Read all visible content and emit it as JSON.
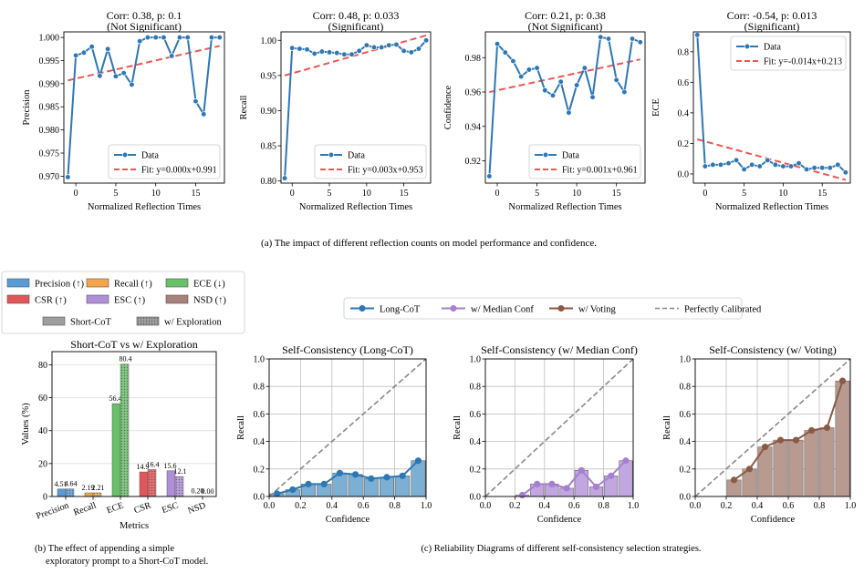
{
  "chart_data": {
    "top_panels": [
      {
        "type": "line",
        "title_line1": "Corr: 0.38, p: 0.1",
        "title_line2": "(Not Significant)",
        "xlabel": "Normalized Reflection Times",
        "ylabel": "Precision",
        "xlim": [
          -1.5,
          18.6
        ],
        "ylim": [
          0.9685,
          1.0012
        ],
        "xticks": [
          0,
          5,
          10,
          15
        ],
        "yticks": [
          0.97,
          0.975,
          0.98,
          0.985,
          0.99,
          0.995,
          1.0
        ],
        "ytick_labels": [
          "0.970",
          "0.975",
          "0.980",
          "0.985",
          "0.990",
          "0.995",
          "1.000"
        ],
        "x": [
          -1,
          0,
          1,
          2,
          3,
          4,
          5,
          6,
          7,
          8,
          9,
          10,
          11,
          12,
          13,
          14,
          15,
          16,
          17,
          18
        ],
        "y": [
          0.9698,
          0.9961,
          0.9967,
          0.998,
          0.9917,
          0.9975,
          0.9916,
          0.9923,
          0.9898,
          0.9992,
          1.0,
          1.0,
          1.0,
          0.996,
          1.0,
          1.0,
          0.9862,
          0.9834,
          1.0,
          1.0
        ],
        "fit": {
          "slope": 0.000392,
          "intercept": 0.9911
        },
        "legend": {
          "data": "Data",
          "fit": "Fit: y=0.000x+0.991",
          "position": "lower-right"
        }
      },
      {
        "type": "line",
        "title_line1": "Corr: 0.48, p: 0.033",
        "title_line2": "(Significant)",
        "xlabel": "Normalized Reflection Times",
        "ylabel": "Recall",
        "xlim": [
          -1.5,
          18.6
        ],
        "ylim": [
          0.797,
          1.012
        ],
        "xticks": [
          0,
          5,
          10,
          15
        ],
        "yticks": [
          0.8,
          0.85,
          0.9,
          0.95,
          1.0
        ],
        "ytick_labels": [
          "0.80",
          "0.85",
          "0.90",
          "0.95",
          "1.00"
        ],
        "x": [
          -1,
          0,
          1,
          2,
          3,
          4,
          5,
          6,
          7,
          8,
          9,
          10,
          11,
          12,
          13,
          14,
          15,
          16,
          17,
          18
        ],
        "y": [
          0.804,
          0.989,
          0.988,
          0.987,
          0.981,
          0.984,
          0.983,
          0.982,
          0.98,
          0.98,
          0.985,
          0.993,
          0.99,
          0.99,
          0.993,
          0.994,
          0.985,
          0.983,
          0.988,
          1.0
        ],
        "fit": {
          "slope": 0.003,
          "intercept": 0.953
        },
        "legend": {
          "data": "Data",
          "fit": "Fit: y=0.003x+0.953",
          "position": "lower-right"
        }
      },
      {
        "type": "line",
        "title_line1": "Corr: 0.21, p: 0.38",
        "title_line2": "(Not Significant)",
        "xlabel": "Normalized Reflection Times",
        "ylabel": "Confidence",
        "xlim": [
          -1.5,
          18.6
        ],
        "ylim": [
          0.907,
          0.995
        ],
        "xticks": [
          0,
          5,
          10,
          15
        ],
        "yticks": [
          0.92,
          0.94,
          0.96,
          0.98
        ],
        "ytick_labels": [
          "0.92",
          "0.94",
          "0.96",
          "0.98"
        ],
        "x": [
          -1,
          0,
          1,
          2,
          3,
          4,
          5,
          6,
          7,
          8,
          9,
          10,
          11,
          12,
          13,
          14,
          15,
          16,
          17,
          18
        ],
        "y": [
          0.911,
          0.988,
          0.983,
          0.978,
          0.969,
          0.973,
          0.974,
          0.961,
          0.958,
          0.966,
          0.948,
          0.964,
          0.974,
          0.957,
          0.992,
          0.991,
          0.967,
          0.96,
          0.991,
          0.989
        ],
        "fit": {
          "slope": 0.001,
          "intercept": 0.961
        },
        "legend": {
          "data": "Data",
          "fit": "Fit: y=0.001x+0.961",
          "position": "lower-right"
        }
      },
      {
        "type": "line",
        "title_line1": "Corr: -0.54, p: 0.013",
        "title_line2": "(Significant)",
        "xlabel": "Normalized Reflection Times",
        "ylabel": "ECE",
        "xlim": [
          -1.5,
          18.6
        ],
        "ylim": [
          -0.06,
          0.93
        ],
        "xticks": [
          0,
          5,
          10,
          15
        ],
        "yticks": [
          0.0,
          0.2,
          0.4,
          0.6,
          0.8
        ],
        "ytick_labels": [
          "0.0",
          "0.2",
          "0.4",
          "0.6",
          "0.8"
        ],
        "x": [
          -1,
          0,
          1,
          2,
          3,
          4,
          5,
          6,
          7,
          8,
          9,
          10,
          11,
          12,
          13,
          14,
          15,
          16,
          17,
          18
        ],
        "y": [
          0.91,
          0.05,
          0.06,
          0.06,
          0.07,
          0.09,
          0.03,
          0.06,
          0.05,
          0.09,
          0.06,
          0.05,
          0.05,
          0.07,
          0.03,
          0.04,
          0.04,
          0.04,
          0.06,
          0.01
        ],
        "fit": {
          "slope": -0.014,
          "intercept": 0.213
        },
        "legend": {
          "data": "Data",
          "fit": "Fit: y=-0.014x+0.213",
          "position": "upper-right"
        }
      }
    ],
    "caption_a": "(a) The impact of different reflection counts on model performance and confidence.",
    "bar_panel": {
      "type": "bar",
      "title": "Short-CoT vs w/ Exploration",
      "xlabel": "Metrics",
      "ylabel": "Values (%)",
      "ylim": [
        0,
        88
      ],
      "yticks": [
        0,
        20,
        40,
        60,
        80
      ],
      "categories": [
        "Precision",
        "Recall",
        "ECE",
        "CSR",
        "ESC",
        "NSD"
      ],
      "colors": [
        "#5b9bd5",
        "#f4a54a",
        "#6abf69",
        "#e15759",
        "#b08fd8",
        "#a7817a"
      ],
      "series": [
        {
          "name": "Short-CoT",
          "values": [
            4.51,
            2.19,
            56.4,
            14.9,
            15.6,
            0.2
          ],
          "labels": [
            "4.51",
            "2.19",
            "56.4",
            "14.9",
            "15.6",
            "0.20"
          ]
        },
        {
          "name": "w/ Exploration",
          "values": [
            4.64,
            2.21,
            80.4,
            16.4,
            12.1,
            0.0
          ],
          "labels": [
            "4.64",
            "2.21",
            "80.4",
            "16.4",
            "12.1",
            "0.00"
          ]
        }
      ],
      "legend_metrics": [
        {
          "label": "Precision (↑)",
          "color": "#5b9bd5"
        },
        {
          "label": "Recall (↑)",
          "color": "#f4a54a"
        },
        {
          "label": "ECE (↓)",
          "color": "#6abf69"
        },
        {
          "label": "CSR (↑)",
          "color": "#e15759"
        },
        {
          "label": "ESC (↑)",
          "color": "#b08fd8"
        },
        {
          "label": "NSD (↑)",
          "color": "#a7817a"
        }
      ],
      "legend_styles": [
        {
          "label": "Short-CoT",
          "pattern": "solid"
        },
        {
          "label": "w/ Exploration",
          "pattern": "dotted"
        }
      ]
    },
    "caption_b_line1": "(b) The effect of appending a simple",
    "caption_b_line2": "exploratory prompt to a Short-CoT model.",
    "reliability_legend": [
      {
        "label": "Long-CoT",
        "color": "#2e77b5",
        "style": "line-marker"
      },
      {
        "label": "w/ Median Conf",
        "color": "#a67fd0",
        "style": "line-marker"
      },
      {
        "label": "w/ Voting",
        "color": "#8b5a44",
        "style": "line-marker"
      },
      {
        "label": "Perfectly Calibrated",
        "color": "#888888",
        "style": "dashed"
      }
    ],
    "reliability_panels": [
      {
        "type": "bar",
        "title": "Self-Consistency (Long-CoT)",
        "xlabel": "Confidence",
        "ylabel": "Recall",
        "xlim": [
          0,
          1
        ],
        "ylim": [
          0,
          1
        ],
        "ticks": [
          0.0,
          0.2,
          0.4,
          0.6,
          0.8,
          1.0
        ],
        "tick_labels": [
          "0.0",
          "0.2",
          "0.4",
          "0.6",
          "0.8",
          "1.0"
        ],
        "color": "#2e77b5",
        "bar_color": "#7bafd4",
        "x": [
          0.05,
          0.15,
          0.25,
          0.35,
          0.45,
          0.55,
          0.65,
          0.75,
          0.85,
          0.95
        ],
        "y": [
          0.02,
          0.05,
          0.09,
          0.09,
          0.17,
          0.16,
          0.13,
          0.14,
          0.15,
          0.26
        ]
      },
      {
        "type": "bar",
        "title": "Self-Consistency (w/ Median Conf)",
        "xlabel": "Confidence",
        "ylabel": "Recall",
        "xlim": [
          0,
          1
        ],
        "ylim": [
          0,
          1
        ],
        "ticks": [
          0.0,
          0.2,
          0.4,
          0.6,
          0.8,
          1.0
        ],
        "tick_labels": [
          "0.0",
          "0.2",
          "0.4",
          "0.6",
          "0.8",
          "1.0"
        ],
        "color": "#a67fd0",
        "bar_color": "#c2a6e0",
        "x": [
          0.25,
          0.35,
          0.45,
          0.55,
          0.65,
          0.75,
          0.85,
          0.95
        ],
        "y": [
          0.01,
          0.09,
          0.09,
          0.06,
          0.19,
          0.07,
          0.15,
          0.26
        ]
      },
      {
        "type": "bar",
        "title": "Self-Consistency (w/ Voting)",
        "xlabel": "Confidence",
        "ylabel": "Recall",
        "xlim": [
          0,
          1
        ],
        "ylim": [
          0,
          1
        ],
        "ticks": [
          0.0,
          0.2,
          0.4,
          0.6,
          0.8,
          1.0
        ],
        "tick_labels": [
          "0.0",
          "0.2",
          "0.4",
          "0.6",
          "0.8",
          "1.0"
        ],
        "color": "#8b5a44",
        "bar_color": "#b99a91",
        "x": [
          0.25,
          0.35,
          0.45,
          0.55,
          0.65,
          0.75,
          0.85,
          0.95
        ],
        "y": [
          0.12,
          0.2,
          0.36,
          0.41,
          0.41,
          0.48,
          0.5,
          0.84
        ]
      }
    ],
    "caption_c": "(c) Reliability Diagrams of different self-consistency selection strategies."
  }
}
